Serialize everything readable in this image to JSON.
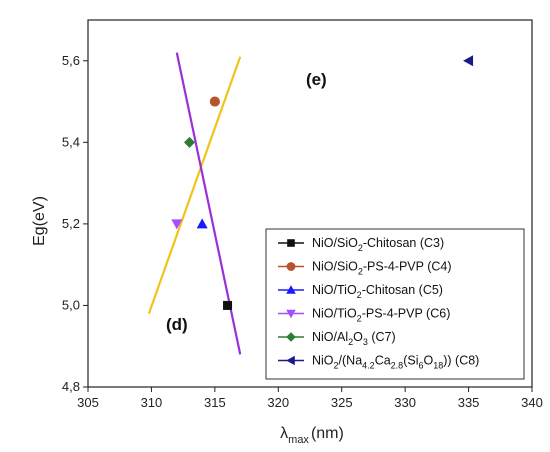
{
  "chart_data": {
    "type": "scatter",
    "xlabel": "λ",
    "xlabel_sub": "max",
    "xlabel_unit": "(nm)",
    "ylabel": "Eg(eV)",
    "xlim": [
      305,
      340
    ],
    "ylim": [
      4.8,
      5.7
    ],
    "xticks": [
      305,
      310,
      315,
      320,
      325,
      330,
      335,
      340
    ],
    "yticks": [
      4.8,
      5.0,
      5.2,
      5.4,
      5.6
    ],
    "xtick_labels": [
      "305",
      "310",
      "315",
      "320",
      "325",
      "330",
      "335",
      "340"
    ],
    "ytick_labels": [
      "4,8",
      "5,0",
      "5,2",
      "5,4",
      "5,6"
    ],
    "legend_position": "bottom-right",
    "series": [
      {
        "label_parts": [
          [
            "NiO/SiO",
            ""
          ],
          [
            "2",
            "sub"
          ],
          [
            "-Chitosan (C3)",
            ""
          ]
        ],
        "marker": "square",
        "color": "#111111",
        "points": [
          [
            316,
            5.0
          ]
        ]
      },
      {
        "label_parts": [
          [
            "NiO/SiO",
            ""
          ],
          [
            "2",
            "sub"
          ],
          [
            "-PS-4-PVP (C4)",
            ""
          ]
        ],
        "marker": "circle",
        "color": "#b5532a",
        "points": [
          [
            315,
            5.5
          ]
        ]
      },
      {
        "label_parts": [
          [
            " NiO/TiO",
            ""
          ],
          [
            "2",
            "sub"
          ],
          [
            "-Chitosan (C5)",
            ""
          ]
        ],
        "marker": "triangle-up",
        "color": "#1a1aff",
        "points": [
          [
            314,
            5.2
          ]
        ]
      },
      {
        "label_parts": [
          [
            "NiO/TiO",
            ""
          ],
          [
            "2",
            "sub"
          ],
          [
            "-PS-4-PVP (C6)",
            ""
          ]
        ],
        "marker": "triangle-down",
        "color": "#a64dff",
        "points": [
          [
            312,
            5.2
          ]
        ]
      },
      {
        "label_parts": [
          [
            "NiO/Al",
            ""
          ],
          [
            "2",
            "sub"
          ],
          [
            "O",
            ""
          ],
          [
            "3",
            "sub"
          ],
          [
            " (C7)",
            ""
          ]
        ],
        "marker": "diamond",
        "color": "#2e7d32",
        "points": [
          [
            313,
            5.4
          ]
        ]
      },
      {
        "label_parts": [
          [
            "NiO",
            ""
          ],
          [
            "2",
            "sub"
          ],
          [
            "/(Na",
            ""
          ],
          [
            "4.2",
            "sub"
          ],
          [
            "Ca",
            ""
          ],
          [
            "2.8",
            "sub"
          ],
          [
            "(Si",
            ""
          ],
          [
            "6",
            "sub"
          ],
          [
            "O",
            ""
          ],
          [
            "18",
            "sub"
          ],
          [
            ")) (C8)",
            ""
          ]
        ],
        "marker": "triangle-left",
        "color": "#1a1a8c",
        "points": [
          [
            335,
            5.6
          ]
        ]
      }
    ],
    "fit_lines": [
      {
        "name": "d",
        "color": "#f0c419",
        "from": [
          309.8,
          4.98
        ],
        "to": [
          317.0,
          5.61
        ]
      },
      {
        "name": "e",
        "color": "#9b30d9",
        "from": [
          312.0,
          5.62
        ],
        "to": [
          317.0,
          4.88
        ]
      }
    ],
    "annotations": [
      {
        "text": "(e)",
        "x": 323,
        "y": 5.54
      },
      {
        "text": "(d)",
        "x": 312,
        "y": 4.94
      }
    ]
  }
}
